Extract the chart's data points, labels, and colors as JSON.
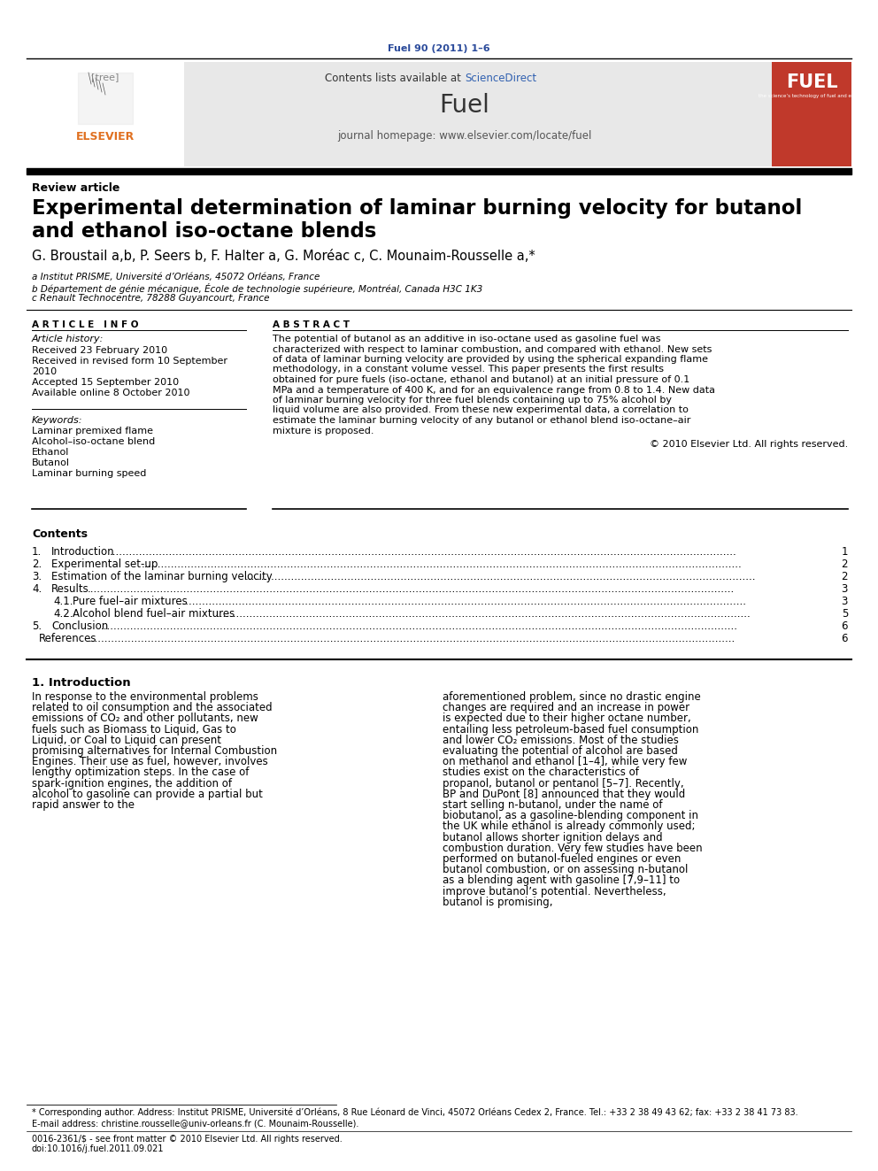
{
  "journal_line": "Fuel 90 (2011) 1–6",
  "journal_line_color": "#2b4b9b",
  "contents_avail": "Contents lists available at ",
  "sciencedirect": "ScienceDirect",
  "journal_name": "Fuel",
  "journal_homepage": "journal homepage: www.elsevier.com/locate/fuel",
  "article_type": "Review article",
  "paper_title_line1": "Experimental determination of laminar burning velocity for butanol",
  "paper_title_line2": "and ethanol iso-octane blends",
  "authors": "G. Broustail a,b, P. Seers b, F. Halter a, G. Moréac c, C. Mounaim-Rousselle a,*",
  "affil_a": "a Institut PRISME, Université d’Orléans, 45072 Orléans, France",
  "affil_b": "b Département de génie mécanique, École de technologie supérieure, Montréal, Canada H3C 1K3",
  "affil_c": "c Renault Technocentre, 78288 Guyancourt, France",
  "article_info_header": "A R T I C L E   I N F O",
  "abstract_header": "A B S T R A C T",
  "article_history_label": "Article history:",
  "received": "Received 23 February 2010",
  "received_revised1": "Received in revised form 10 September",
  "received_revised2": "2010",
  "accepted": "Accepted 15 September 2010",
  "available": "Available online 8 October 2010",
  "keywords_label": "Keywords:",
  "keywords": [
    "Laminar premixed flame",
    "Alcohol–iso-octane blend",
    "Ethanol",
    "Butanol",
    "Laminar burning speed"
  ],
  "abstract_text": "The potential of butanol as an additive in iso-octane used as gasoline fuel was characterized with respect to laminar combustion, and compared with ethanol. New sets of data of laminar burning velocity are provided by using the spherical expanding flame methodology, in a constant volume vessel. This paper presents the first results obtained for pure fuels (iso-octane, ethanol and butanol) at an initial pressure of 0.1 MPa and a temperature of 400 K, and for an equivalence range from 0.8 to 1.4. New data of laminar burning velocity for three fuel blends containing up to 75% alcohol by liquid volume are also provided. From these new experimental data, a correlation to estimate the laminar burning velocity of any butanol or ethanol blend iso-octane–air mixture is proposed.",
  "copyright": "© 2010 Elsevier Ltd. All rights reserved.",
  "contents_header": "Contents",
  "toc": [
    {
      "num": "1.",
      "title": "Introduction",
      "page": "1",
      "indent": false
    },
    {
      "num": "2.",
      "title": "Experimental set-up",
      "page": "2",
      "indent": false
    },
    {
      "num": "3.",
      "title": "Estimation of the laminar burning velocity",
      "page": "2",
      "indent": false
    },
    {
      "num": "4.",
      "title": "Results",
      "page": "3",
      "indent": false
    },
    {
      "num": "4.1.",
      "title": "Pure fuel–air mixtures",
      "page": "3",
      "indent": true
    },
    {
      "num": "4.2.",
      "title": "Alcohol blend fuel–air mixtures",
      "page": "5",
      "indent": true
    },
    {
      "num": "5.",
      "title": "Conclusion",
      "page": "6",
      "indent": false
    },
    {
      "num": "",
      "title": "References",
      "page": "6",
      "indent": false
    }
  ],
  "intro_header": "1. Introduction",
  "intro_col1": "In response to the environmental problems related to oil consumption and the associated emissions of CO₂ and other pollutants, new fuels such as Biomass to Liquid, Gas to Liquid, or Coal to Liquid can present promising alternatives for Internal Combustion Engines. Their use as fuel, however, involves lengthy optimization steps. In the case of spark-ignition engines, the addition of alcohol to gasoline can provide a partial but rapid answer to the",
  "intro_col2": "aforementioned problem, since no drastic engine changes are required and an increase in power is expected due to their higher octane number, entailing less petroleum-based fuel consumption and lower CO₂ emissions. Most of the studies evaluating the potential of alcohol are based on methanol and ethanol [1–4], while very few studies exist on the characteristics of propanol, butanol or pentanol [5–7]. Recently, BP and DuPont [8] announced that they would start selling n-butanol, under the name of biobutanol, as a gasoline-blending component in the UK while ethanol is already commonly used; butanol allows shorter ignition delays and combustion duration. Very few studies have been performed on butanol-fueled engines or even butanol combustion, or on assessing n-butanol as a blending agent with gasoline [7,9–11] to improve butanol’s potential. Nevertheless, butanol is promising,",
  "footer_star": "* Corresponding author. Address: Institut PRISME, Université d’Orléans, 8 Rue Léonard de Vinci, 45072 Orléans Cedex 2, France. Tel.: +33 2 38 49 43 62; fax: +33 2 38 41 73 83.",
  "footer_email": "E-mail address: christine.rousselle@univ-orleans.fr (C. Mounaim-Rousselle).",
  "footer_issn": "0016-2361/$ - see front matter © 2010 Elsevier Ltd. All rights reserved.",
  "footer_doi": "doi:10.1016/j.fuel.2011.09.021",
  "bg_color": "#ffffff",
  "header_bg": "#e8e8e8",
  "elsevier_orange": "#e07020",
  "fuel_red": "#c0392b",
  "link_color": "#3060b0"
}
